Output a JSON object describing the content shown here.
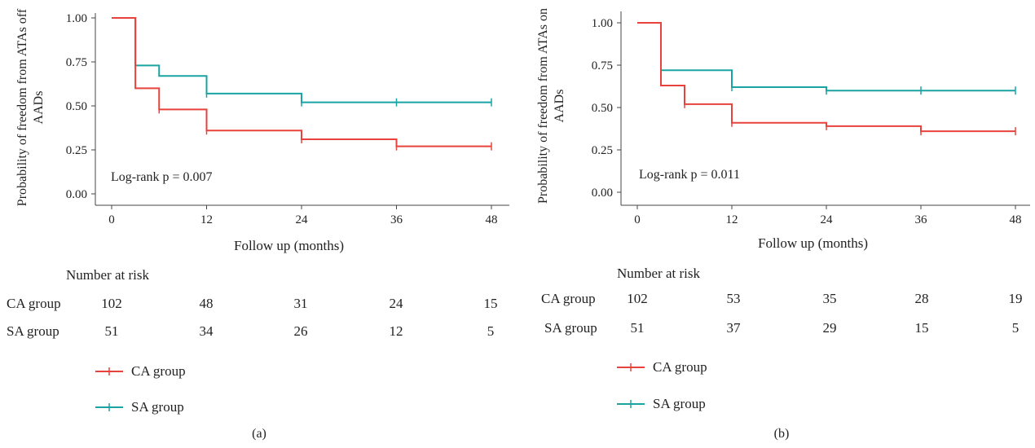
{
  "chart_data": [
    {
      "type": "line",
      "panel_label": "(a)",
      "ylabel": "Probability of freedom from ATAs off AADs",
      "xlabel": "Follow up (months)",
      "xticks": [
        0,
        12,
        24,
        36,
        48
      ],
      "yticks": [
        "0.00",
        "0.25",
        "0.50",
        "0.75",
        "1.00"
      ],
      "xlim": [
        0,
        48
      ],
      "ylim": [
        0,
        1
      ],
      "annotation": "Log-rank p = 0.007",
      "series": [
        {
          "name": "CA group",
          "color": "#e8423c",
          "steps": [
            [
              0,
              1.0
            ],
            [
              3,
              0.6
            ],
            [
              6,
              0.48
            ],
            [
              12,
              0.36
            ],
            [
              24,
              0.31
            ],
            [
              36,
              0.27
            ],
            [
              48,
              0.27
            ]
          ],
          "censor": [
            [
              6,
              0.48
            ],
            [
              12,
              0.36
            ],
            [
              24,
              0.31
            ],
            [
              36,
              0.27
            ],
            [
              48,
              0.27
            ]
          ]
        },
        {
          "name": "SA group",
          "color": "#1aa3a3",
          "steps": [
            [
              0,
              1.0
            ],
            [
              3,
              0.73
            ],
            [
              6,
              0.67
            ],
            [
              12,
              0.57
            ],
            [
              24,
              0.52
            ],
            [
              48,
              0.52
            ]
          ],
          "censor": [
            [
              3,
              0.73
            ],
            [
              12,
              0.57
            ],
            [
              24,
              0.52
            ],
            [
              36,
              0.52
            ],
            [
              48,
              0.52
            ]
          ]
        }
      ],
      "risk_table": {
        "title": "Number at risk",
        "rows": [
          {
            "group": "CA group",
            "values": [
              "102",
              "48",
              "31",
              "24",
              "15"
            ]
          },
          {
            "group": "SA group",
            "values": [
              "51",
              "34",
              "26",
              "12",
              "5"
            ]
          }
        ]
      },
      "legend": [
        "CA group",
        "SA group"
      ]
    },
    {
      "type": "line",
      "panel_label": "(b)",
      "ylabel": "Probability of freedom from ATAs on AADs",
      "xlabel": "Follow up (months)",
      "xticks": [
        0,
        12,
        24,
        36,
        48
      ],
      "yticks": [
        "0.00",
        "0.25",
        "0.50",
        "0.75",
        "1.00"
      ],
      "xlim": [
        0,
        48
      ],
      "ylim": [
        0,
        1
      ],
      "annotation": "Log-rank p = 0.011",
      "series": [
        {
          "name": "CA group",
          "color": "#e8423c",
          "steps": [
            [
              0,
              1.0
            ],
            [
              3,
              0.63
            ],
            [
              6,
              0.52
            ],
            [
              12,
              0.41
            ],
            [
              24,
              0.39
            ],
            [
              36,
              0.36
            ],
            [
              48,
              0.36
            ]
          ],
          "censor": [
            [
              6,
              0.52
            ],
            [
              12,
              0.41
            ],
            [
              24,
              0.39
            ],
            [
              36,
              0.36
            ],
            [
              48,
              0.36
            ]
          ]
        },
        {
          "name": "SA group",
          "color": "#1aa3a3",
          "steps": [
            [
              0,
              1.0
            ],
            [
              3,
              0.72
            ],
            [
              12,
              0.62
            ],
            [
              24,
              0.6
            ],
            [
              48,
              0.6
            ]
          ],
          "censor": [
            [
              12,
              0.62
            ],
            [
              24,
              0.6
            ],
            [
              36,
              0.6
            ],
            [
              48,
              0.6
            ]
          ]
        }
      ],
      "risk_table": {
        "title": "Number at risk",
        "rows": [
          {
            "group": "CA group",
            "values": [
              "102",
              "53",
              "35",
              "28",
              "19"
            ]
          },
          {
            "group": "SA group",
            "values": [
              "51",
              "37",
              "29",
              "15",
              "5"
            ]
          }
        ]
      },
      "legend": [
        "CA group",
        "SA group"
      ]
    }
  ]
}
